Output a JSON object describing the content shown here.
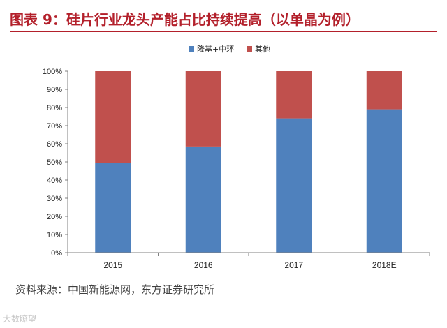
{
  "header": {
    "title": "图表 9：硅片行业龙头产能占比持续提高（以单晶为例）"
  },
  "footer": {
    "source": "资料来源：中国新能源网，东方证券研究所"
  },
  "watermark": {
    "text": "大数瞭望"
  },
  "chart_data": {
    "type": "bar",
    "stacked": true,
    "categories": [
      "2015",
      "2016",
      "2017",
      "2018E"
    ],
    "series": [
      {
        "name": "隆基+中环",
        "values": [
          49.5,
          58.5,
          74,
          79
        ],
        "color": "#4f81bd"
      },
      {
        "name": "其他",
        "values": [
          50.5,
          41.5,
          26,
          21
        ],
        "color": "#c0504d"
      }
    ],
    "yticks": [
      "0%",
      "10%",
      "20%",
      "30%",
      "40%",
      "50%",
      "60%",
      "70%",
      "80%",
      "90%",
      "100%"
    ],
    "ylim": [
      0,
      100
    ],
    "legend": "top-center",
    "grid": false
  }
}
